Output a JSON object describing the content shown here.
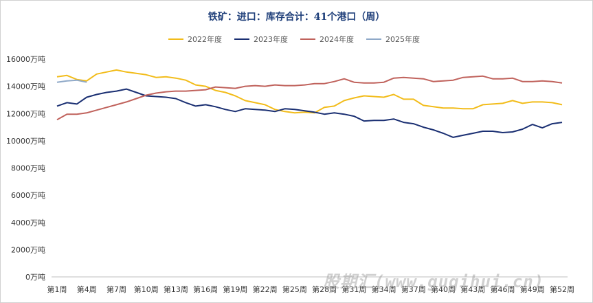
{
  "chart_data": {
    "type": "line",
    "title": "铁矿：进口：库存合计：41个港口（周）",
    "ylim": [
      0,
      16000
    ],
    "yticks": [
      0,
      2000,
      4000,
      6000,
      8000,
      10000,
      12000,
      14000,
      16000
    ],
    "ytick_suffix": "万吨",
    "xtick_labels": [
      "第1周",
      "第4周",
      "第7周",
      "第10周",
      "第13周",
      "第16周",
      "第19周",
      "第22周",
      "第25周",
      "第28周",
      "第31周",
      "第34周",
      "第37周",
      "第40周",
      "第43周",
      "第46周",
      "第49周",
      "第52周"
    ],
    "xtick_weeks": [
      1,
      4,
      7,
      10,
      13,
      16,
      19,
      22,
      25,
      28,
      31,
      34,
      37,
      40,
      43,
      46,
      49,
      52
    ],
    "legend_position": "top",
    "grid": false,
    "series": [
      {
        "name": "2022年度",
        "color": "#f2bc1a",
        "values": [
          14700,
          14800,
          14500,
          14400,
          14900,
          15050,
          15200,
          15050,
          14950,
          14850,
          14650,
          14700,
          14600,
          14450,
          14100,
          14000,
          13700,
          13550,
          13300,
          12950,
          12800,
          12650,
          12300,
          12150,
          12050,
          12100,
          12050,
          12450,
          12550,
          12950,
          13150,
          13300,
          13250,
          13200,
          13400,
          13050,
          13050,
          12600,
          12500,
          12400,
          12400,
          12350,
          12350,
          12650,
          12700,
          12750,
          12950,
          12750,
          12850,
          12850,
          12800,
          12650
        ]
      },
      {
        "name": "2023年度",
        "color": "#1a2f72",
        "values": [
          12550,
          12800,
          12700,
          13200,
          13400,
          13550,
          13650,
          13800,
          13550,
          13300,
          13250,
          13200,
          13100,
          12800,
          12550,
          12650,
          12500,
          12300,
          12150,
          12350,
          12300,
          12250,
          12150,
          12350,
          12300,
          12200,
          12100,
          11950,
          12050,
          11950,
          11800,
          11450,
          11500,
          11500,
          11600,
          11350,
          11250,
          11000,
          10800,
          10550,
          10250,
          10400,
          10550,
          10700,
          10700,
          10600,
          10650,
          10850,
          11200,
          10950,
          11250,
          11350
        ]
      },
      {
        "name": "2024年度",
        "color": "#c0625c",
        "values": [
          11550,
          11950,
          11950,
          12050,
          12250,
          12450,
          12650,
          12850,
          13100,
          13350,
          13500,
          13600,
          13650,
          13650,
          13700,
          13750,
          13950,
          13900,
          13850,
          14000,
          14050,
          14000,
          14100,
          14050,
          14050,
          14100,
          14200,
          14200,
          14350,
          14550,
          14300,
          14250,
          14250,
          14300,
          14600,
          14650,
          14600,
          14550,
          14350,
          14400,
          14450,
          14650,
          14700,
          14750,
          14550,
          14550,
          14600,
          14350,
          14350,
          14400,
          14350,
          14250
        ]
      },
      {
        "name": "2025年度",
        "color": "#8fa9c8",
        "values": [
          14300,
          14400,
          14450,
          14300
        ]
      }
    ]
  },
  "watermark": "股期汇(www.guqihui.cn)"
}
